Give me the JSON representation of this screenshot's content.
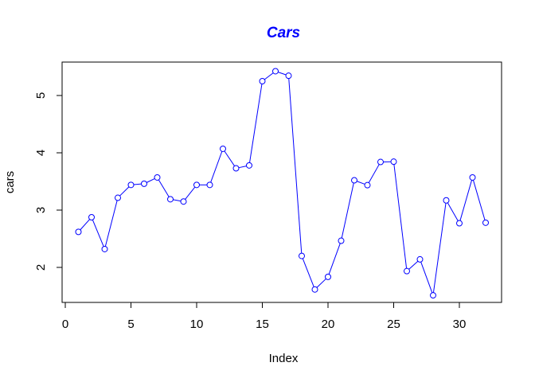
{
  "chart_data": {
    "type": "line",
    "title": "Cars",
    "xlabel": "Index",
    "ylabel": "cars",
    "color": "#0000ff",
    "markers": "open-circle",
    "grid": false,
    "legend": "none",
    "xlim": [
      0,
      33
    ],
    "ylim": [
      1.4,
      5.6
    ],
    "xticks": [
      0,
      5,
      10,
      15,
      20,
      25,
      30
    ],
    "yticks": [
      2,
      3,
      4,
      5
    ],
    "x": [
      1,
      2,
      3,
      4,
      5,
      6,
      7,
      8,
      9,
      10,
      11,
      12,
      13,
      14,
      15,
      16,
      17,
      18,
      19,
      20,
      21,
      22,
      23,
      24,
      25,
      26,
      27,
      28,
      29,
      30,
      31,
      32
    ],
    "values": [
      2.62,
      2.875,
      2.32,
      3.215,
      3.44,
      3.46,
      3.57,
      3.19,
      3.15,
      3.44,
      3.44,
      4.07,
      3.73,
      3.78,
      5.25,
      5.424,
      5.345,
      2.2,
      1.615,
      1.835,
      2.465,
      3.52,
      3.435,
      3.84,
      3.845,
      1.935,
      2.14,
      1.513,
      3.17,
      2.77,
      3.57,
      2.78
    ]
  }
}
